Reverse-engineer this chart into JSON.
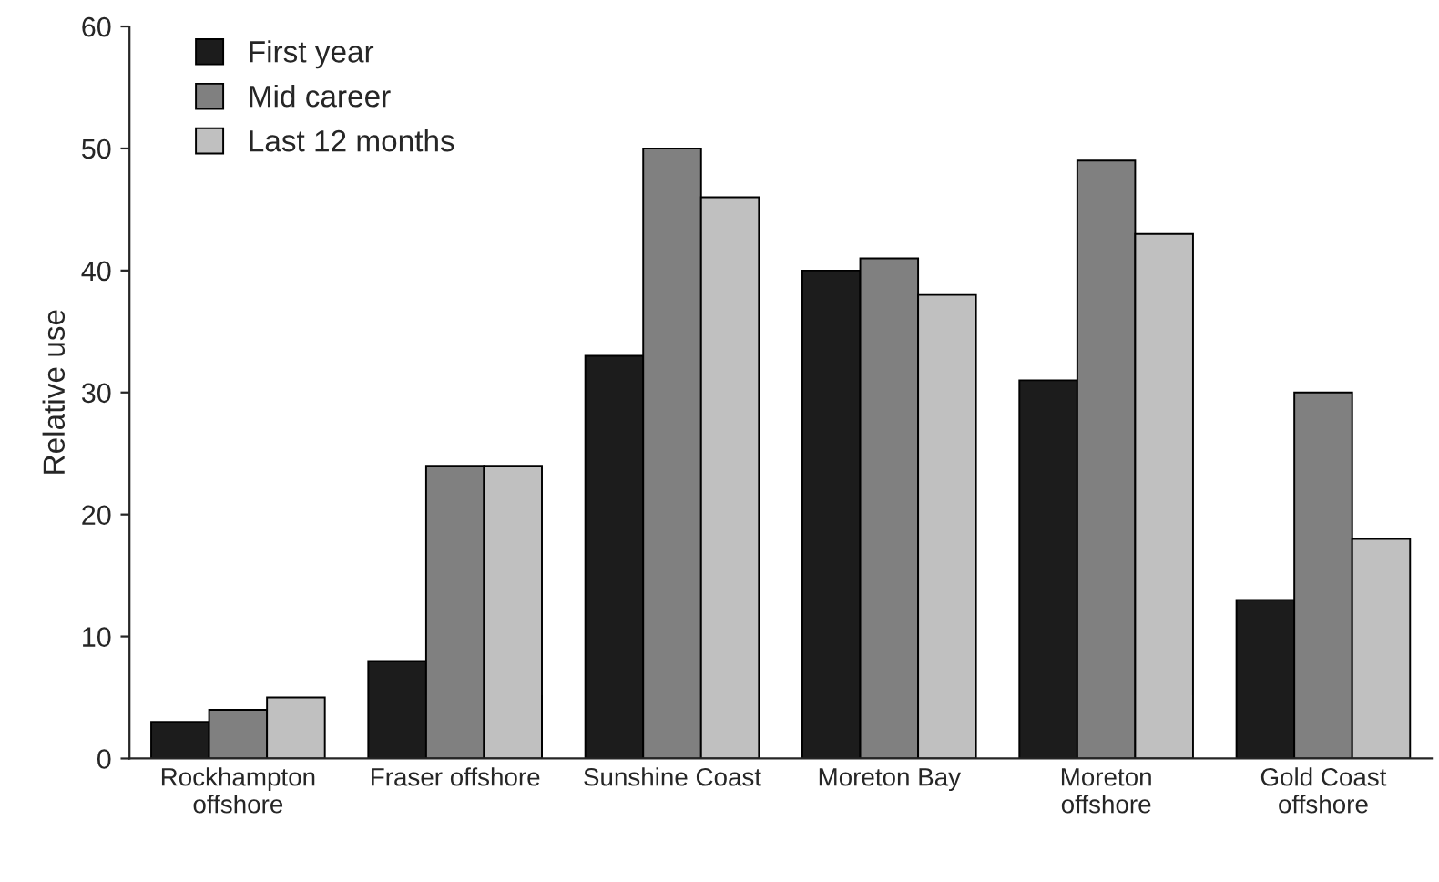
{
  "chart_data": {
    "type": "bar",
    "ylabel": "Relative use",
    "categories": [
      "Rockhampton\noffshore",
      "Fraser offshore",
      "Sunshine Coast",
      "Moreton Bay",
      "Moreton\noffshore",
      "Gold Coast\noffshore"
    ],
    "series": [
      {
        "name": "First year",
        "color": "#1c1c1c",
        "values": [
          3,
          8,
          33,
          40,
          31,
          13
        ]
      },
      {
        "name": "Mid career",
        "color": "#808080",
        "values": [
          4,
          24,
          50,
          41,
          49,
          30
        ]
      },
      {
        "name": "Last 12 months",
        "color": "#c0c0c0",
        "values": [
          5,
          24,
          46,
          38,
          43,
          18
        ]
      }
    ],
    "ylim": [
      0,
      60
    ],
    "yticks": [
      0,
      10,
      20,
      30,
      40,
      50,
      60
    ],
    "grid": false,
    "legend": "top left"
  }
}
